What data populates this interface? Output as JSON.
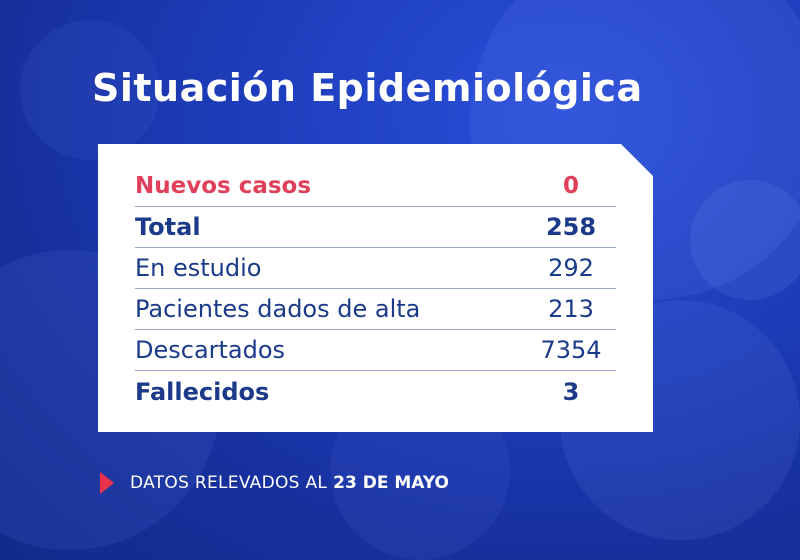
{
  "title": "Situación Epidemiológica",
  "rows": [
    {
      "label": "Nuevos casos",
      "value": "0"
    },
    {
      "label": "Total",
      "value": "258"
    },
    {
      "label": "En estudio",
      "value": "292"
    },
    {
      "label": "Pacientes dados de alta",
      "value": "213"
    },
    {
      "label": "Descartados",
      "value": "7354"
    },
    {
      "label": "Fallecidos",
      "value": "3"
    }
  ],
  "footer": {
    "note": "DATOS RELEVADOS AL",
    "date": "23 DE MAYO"
  },
  "colors": {
    "background": "#1f3fbf",
    "highlight_red": "#e0405a",
    "text_blue": "#1c3a8a",
    "arrow_red": "#e8334a"
  }
}
